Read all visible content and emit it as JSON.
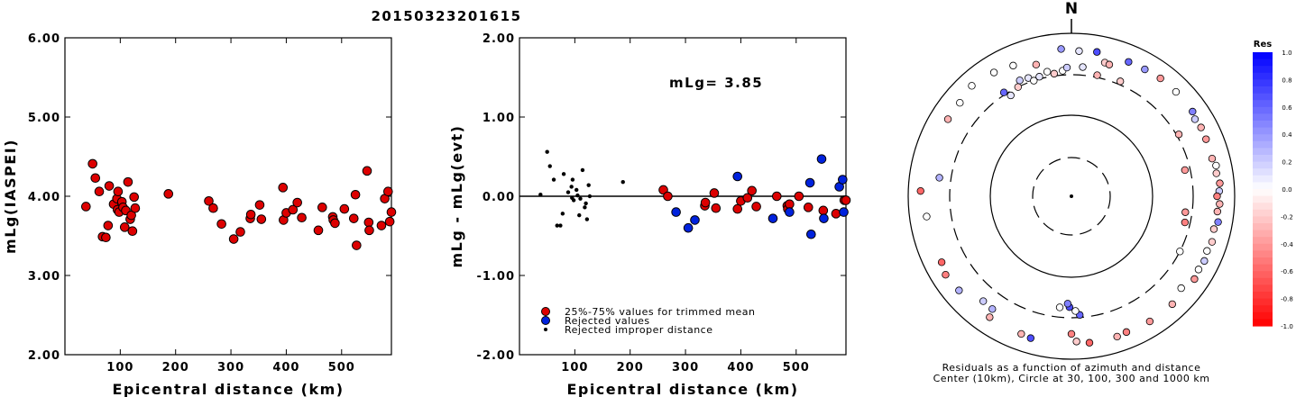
{
  "title": "20150323201615",
  "chart_data": [
    {
      "type": "scatter",
      "xlabel": "Epicentral distance (km)",
      "ylabel": "mLg(IASPEI)",
      "xlim": [
        0,
        590
      ],
      "ylim": [
        2.0,
        6.0
      ],
      "x_ticks": [
        "100",
        "200",
        "300",
        "400",
        "500"
      ],
      "y_ticks": [
        "2.00",
        "3.00",
        "4.00",
        "5.00",
        "6.00"
      ],
      "grid": false,
      "series": [
        {
          "color": "#dd0000",
          "points": [
            [
              38,
              3.87
            ],
            [
              50,
              4.41
            ],
            [
              55,
              4.23
            ],
            [
              62,
              4.06
            ],
            [
              68,
              3.49
            ],
            [
              74,
              3.48
            ],
            [
              78,
              3.63
            ],
            [
              80,
              4.13
            ],
            [
              88,
              3.9
            ],
            [
              94,
              3.97
            ],
            [
              95,
              3.83
            ],
            [
              96,
              4.06
            ],
            [
              98,
              3.8
            ],
            [
              103,
              3.93
            ],
            [
              105,
              3.86
            ],
            [
              108,
              3.61
            ],
            [
              110,
              3.82
            ],
            [
              114,
              4.18
            ],
            [
              118,
              3.71
            ],
            [
              120,
              3.76
            ],
            [
              122,
              3.56
            ],
            [
              125,
              3.99
            ],
            [
              127,
              3.85
            ],
            [
              187,
              4.03
            ],
            [
              260,
              3.94
            ],
            [
              268,
              3.85
            ],
            [
              283,
              3.65
            ],
            [
              305,
              3.46
            ],
            [
              317,
              3.55
            ],
            [
              335,
              3.72
            ],
            [
              336,
              3.77
            ],
            [
              352,
              3.89
            ],
            [
              355,
              3.71
            ],
            [
              394,
              4.11
            ],
            [
              395,
              3.7
            ],
            [
              400,
              3.79
            ],
            [
              412,
              3.83
            ],
            [
              420,
              3.92
            ],
            [
              428,
              3.73
            ],
            [
              458,
              3.57
            ],
            [
              465,
              3.86
            ],
            [
              484,
              3.74
            ],
            [
              485,
              3.7
            ],
            [
              488,
              3.66
            ],
            [
              505,
              3.84
            ],
            [
              522,
              3.72
            ],
            [
              525,
              4.02
            ],
            [
              527,
              3.38
            ],
            [
              546,
              4.32
            ],
            [
              549,
              3.67
            ],
            [
              550,
              3.57
            ],
            [
              572,
              3.63
            ],
            [
              578,
              3.97
            ],
            [
              584,
              4.06
            ],
            [
              587,
              3.68
            ],
            [
              590,
              3.8
            ]
          ]
        }
      ]
    },
    {
      "type": "scatter",
      "xlabel": "Epicentral distance (km)",
      "ylabel": "mLg - mLg(evt)",
      "annotation": "mLg= 3.85",
      "xlim": [
        0,
        590
      ],
      "ylim": [
        -2.0,
        2.0
      ],
      "x_ticks": [
        "100",
        "200",
        "300",
        "400",
        "500"
      ],
      "y_ticks": [
        "-2.00",
        "-1.00",
        "0.00",
        "1.00",
        "2.00"
      ],
      "reference_line": 0.0,
      "legend": [
        "25%-75% values for trimmed mean",
        "Rejected values",
        "Rejected improper distance"
      ],
      "legend_position": "bottom-left",
      "series": [
        {
          "marker": "red-circle",
          "color": "#dd0000",
          "points": [
            [
              260,
              0.08
            ],
            [
              268,
              0.0
            ],
            [
              335,
              -0.12
            ],
            [
              336,
              -0.08
            ],
            [
              352,
              0.04
            ],
            [
              355,
              -0.15
            ],
            [
              394,
              -0.16
            ],
            [
              400,
              -0.06
            ],
            [
              412,
              -0.02
            ],
            [
              420,
              0.07
            ],
            [
              428,
              -0.13
            ],
            [
              465,
              0.0
            ],
            [
              484,
              -0.12
            ],
            [
              485,
              -0.16
            ],
            [
              488,
              -0.1
            ],
            [
              505,
              0.0
            ],
            [
              522,
              -0.14
            ],
            [
              549,
              -0.18
            ],
            [
              572,
              -0.22
            ],
            [
              587,
              -0.05
            ],
            [
              590,
              -0.05
            ]
          ]
        },
        {
          "marker": "blue-circle",
          "color": "#0022dd",
          "points": [
            [
              283,
              -0.2
            ],
            [
              305,
              -0.4
            ],
            [
              317,
              -0.3
            ],
            [
              394,
              0.25
            ],
            [
              458,
              -0.28
            ],
            [
              488,
              -0.2
            ],
            [
              525,
              0.17
            ],
            [
              527,
              -0.48
            ],
            [
              546,
              0.47
            ],
            [
              550,
              -0.28
            ],
            [
              578,
              0.12
            ],
            [
              584,
              0.21
            ],
            [
              586,
              -0.2
            ]
          ]
        },
        {
          "marker": "black-dot",
          "color": "#000000",
          "points": [
            [
              38,
              0.02
            ],
            [
              50,
              0.56
            ],
            [
              55,
              0.38
            ],
            [
              62,
              0.21
            ],
            [
              68,
              -0.37
            ],
            [
              74,
              -0.37
            ],
            [
              78,
              -0.22
            ],
            [
              80,
              0.28
            ],
            [
              88,
              0.05
            ],
            [
              94,
              0.12
            ],
            [
              95,
              -0.02
            ],
            [
              96,
              0.21
            ],
            [
              98,
              -0.05
            ],
            [
              103,
              0.08
            ],
            [
              105,
              0.01
            ],
            [
              108,
              -0.24
            ],
            [
              110,
              -0.03
            ],
            [
              114,
              0.33
            ],
            [
              118,
              -0.14
            ],
            [
              120,
              -0.09
            ],
            [
              122,
              -0.29
            ],
            [
              125,
              0.14
            ],
            [
              127,
              0.0
            ],
            [
              187,
              0.18
            ]
          ]
        }
      ]
    },
    {
      "type": "scatter",
      "subtype": "polar residual map",
      "north_label": "N",
      "caption_line1": "Residuals as a function of azimuth and distance",
      "caption_line2": "Center (10km), Circle at 30, 100, 300 and 1000 km",
      "colorbar_title": "Res",
      "colorbar_ticks": [
        "1.0",
        "0.8",
        "0.6",
        "0.4",
        "0.2",
        "0.0",
        "-0.2",
        "-0.4",
        "-0.6",
        "-0.8",
        "-1.0"
      ],
      "colorbar_range": [
        -1.0,
        1.0
      ],
      "rings_km": [
        30,
        100,
        300,
        1000
      ],
      "points_residual": [
        {
          "az": 3,
          "dist": 600,
          "res": 0.1
        },
        {
          "az": 10,
          "dist": 620,
          "res": 0.7
        },
        {
          "az": 356,
          "dist": 640,
          "res": 0.4
        },
        {
          "az": 14,
          "dist": 480,
          "res": -0.2
        },
        {
          "az": 16,
          "dist": 470,
          "res": -0.3
        },
        {
          "az": 23,
          "dist": 610,
          "res": 0.6
        },
        {
          "az": 30,
          "dist": 620,
          "res": 0.4
        },
        {
          "az": 37,
          "dist": 640,
          "res": -0.4
        },
        {
          "az": 45,
          "dist": 640,
          "res": 0.0
        },
        {
          "az": 55,
          "dist": 640,
          "res": 0.5
        },
        {
          "az": 58,
          "dist": 600,
          "res": 0.2
        },
        {
          "az": 62,
          "dist": 620,
          "res": -0.3
        },
        {
          "az": 67,
          "dist": 610,
          "res": -0.4
        },
        {
          "az": 75,
          "dist": 600,
          "res": -0.3
        },
        {
          "az": 78,
          "dist": 640,
          "res": 0.0
        },
        {
          "az": 81,
          "dist": 620,
          "res": -0.2
        },
        {
          "az": 85,
          "dist": 660,
          "res": -0.4
        },
        {
          "az": 88,
          "dist": 640,
          "res": 0.2
        },
        {
          "az": 90,
          "dist": 600,
          "res": -0.5
        },
        {
          "az": 93,
          "dist": 650,
          "res": -0.3
        },
        {
          "az": 96,
          "dist": 620,
          "res": -0.3
        },
        {
          "az": 100,
          "dist": 660,
          "res": 0.5
        },
        {
          "az": 103,
          "dist": 610,
          "res": -0.2
        },
        {
          "az": 108,
          "dist": 640,
          "res": -0.2
        },
        {
          "az": 112,
          "dist": 610,
          "res": 0.0
        },
        {
          "az": 116,
          "dist": 640,
          "res": 0.2
        },
        {
          "az": 120,
          "dist": 620,
          "res": 0.0
        },
        {
          "az": 124,
          "dist": 650,
          "res": -0.4
        },
        {
          "az": 130,
          "dist": 560,
          "res": 0.0
        },
        {
          "az": 137,
          "dist": 640,
          "res": -0.3
        },
        {
          "az": 148,
          "dist": 640,
          "res": -0.4
        },
        {
          "az": 158,
          "dist": 620,
          "res": -0.5
        },
        {
          "az": 162,
          "dist": 640,
          "res": -0.3
        },
        {
          "az": 173,
          "dist": 640,
          "res": -0.6
        },
        {
          "az": 178,
          "dist": 600,
          "res": -0.2
        },
        {
          "az": 180,
          "dist": 480,
          "res": -0.5
        },
        {
          "az": 176,
          "dist": 280,
          "res": 0.6
        },
        {
          "az": 178,
          "dist": 250,
          "res": 0.0
        },
        {
          "az": 181,
          "dist": 225,
          "res": 0.7
        },
        {
          "az": 182,
          "dist": 205,
          "res": 0.5
        },
        {
          "az": 186,
          "dist": 230,
          "res": 0.0
        },
        {
          "az": 196,
          "dist": 640,
          "res": 0.7
        },
        {
          "az": 200,
          "dist": 620,
          "res": -0.3
        },
        {
          "az": 214,
          "dist": 610,
          "res": -0.3
        },
        {
          "az": 215,
          "dist": 480,
          "res": 0.3
        },
        {
          "az": 220,
          "dist": 470,
          "res": 0.2
        },
        {
          "az": 230,
          "dist": 620,
          "res": 0.3
        },
        {
          "az": 238,
          "dist": 650,
          "res": -0.5
        },
        {
          "az": 243,
          "dist": 600,
          "res": -0.6
        },
        {
          "az": 262,
          "dist": 610,
          "res": 0.0
        },
        {
          "az": 272,
          "dist": 700,
          "res": -0.6
        },
        {
          "az": 278,
          "dist": 420,
          "res": 0.3
        },
        {
          "az": 302,
          "dist": 600,
          "res": -0.3
        },
        {
          "az": 310,
          "dist": 600,
          "res": 0.0
        },
        {
          "az": 318,
          "dist": 660,
          "res": 0.0
        },
        {
          "az": 328,
          "dist": 610,
          "res": 0.0
        },
        {
          "az": 336,
          "dist": 560,
          "res": 0.0
        },
        {
          "az": 327,
          "dist": 320,
          "res": 0.6
        },
        {
          "az": 329,
          "dist": 270,
          "res": 0.1
        },
        {
          "az": 334,
          "dist": 300,
          "res": -0.2
        },
        {
          "az": 336,
          "dist": 350,
          "res": 0.2
        },
        {
          "az": 340,
          "dist": 340,
          "res": 0.1
        },
        {
          "az": 342,
          "dist": 300,
          "res": 0.0
        },
        {
          "az": 345,
          "dist": 320,
          "res": 0.1
        },
        {
          "az": 349,
          "dist": 350,
          "res": 0.0
        },
        {
          "az": 352,
          "dist": 320,
          "res": -0.2
        },
        {
          "az": 356,
          "dist": 340,
          "res": 0.0
        },
        {
          "az": 358,
          "dist": 370,
          "res": 0.2
        },
        {
          "az": 60,
          "dist": 320,
          "res": -0.3
        },
        {
          "az": 77,
          "dist": 260,
          "res": -0.4
        },
        {
          "az": 98,
          "dist": 250,
          "res": -0.4
        },
        {
          "az": 103,
          "dist": 260,
          "res": -0.5
        },
        {
          "az": 117,
          "dist": 300,
          "res": 0.0
        },
        {
          "az": 12,
          "dist": 320,
          "res": -0.3
        },
        {
          "az": 23,
          "dist": 330,
          "res": -0.2
        },
        {
          "az": 345,
          "dist": 460,
          "res": -0.3
        },
        {
          "az": 5,
          "dist": 380,
          "res": 0.1
        }
      ]
    }
  ]
}
